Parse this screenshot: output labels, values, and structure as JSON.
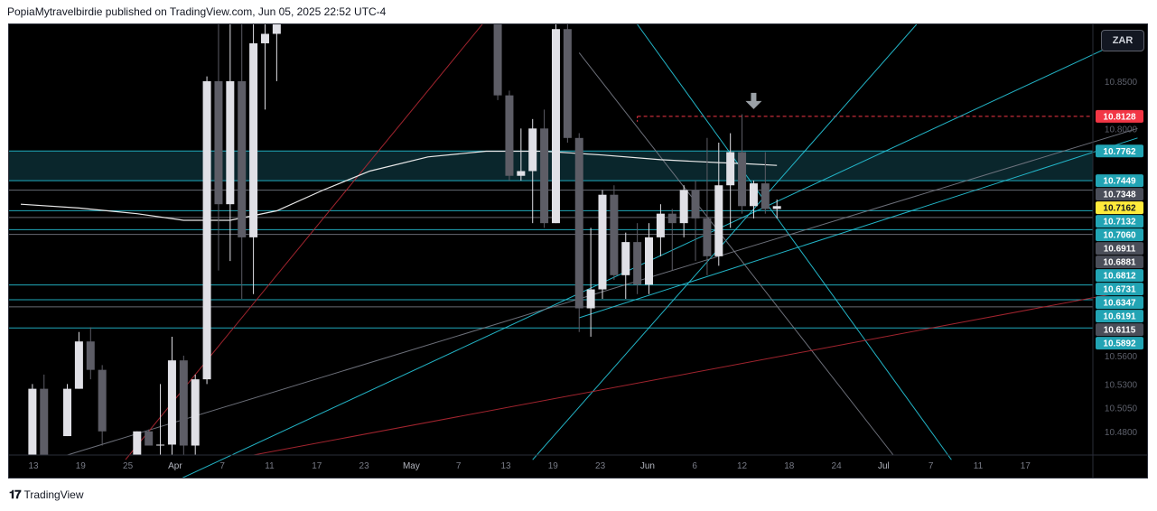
{
  "header": {
    "text": "PopiaMytravelbirdie published on TradingView.com, Jun 05, 2025 22:52 UTC-4"
  },
  "toolbar": {
    "currency_label": "ZAR"
  },
  "footer": {
    "logo_icon": "tradingview-logo-icon",
    "logo_glyph": "𝟏𝟕",
    "brand": "TradingView"
  },
  "colors": {
    "background": "#000000",
    "cyan": "#26c6da",
    "gray": "#787b86",
    "red": "#b22833",
    "candle_up": "#e0e0e6",
    "candle_down": "#5d5d66",
    "label_teal": "#22a4b4",
    "label_gray": "#4a4e59",
    "label_red": "#f23645",
    "label_yellow": "#ffeb3b"
  },
  "chart_data": {
    "type": "candlestick",
    "symbol_currency": "ZAR",
    "ylim": [
      10.455,
      10.91
    ],
    "x_tick_labels": [
      "13",
      "19",
      "25",
      "Apr",
      "7",
      "11",
      "17",
      "23",
      "May",
      "7",
      "13",
      "19",
      "23",
      "Jun",
      "6",
      "12",
      "18",
      "24",
      "Jul",
      "7",
      "11",
      "17"
    ],
    "y_tick_labels": [
      "10.8500",
      "10.8000",
      "10.5600",
      "10.5300",
      "10.5050",
      "10.4800"
    ],
    "y_tick_values": [
      10.85,
      10.8,
      10.56,
      10.53,
      10.505,
      10.48
    ],
    "price_labels": [
      {
        "text": "10.8128",
        "value": 10.8128,
        "style": "red"
      },
      {
        "text": "10.7762",
        "value": 10.7762,
        "style": "teal"
      },
      {
        "text": "10.7449",
        "value": 10.7449,
        "style": "teal"
      },
      {
        "text": "10.7348",
        "value": 10.7348,
        "style": "gray"
      },
      {
        "text": "10.7162",
        "value": 10.7162,
        "style": "yellow"
      },
      {
        "text": "10.7132",
        "value": 10.7132,
        "style": "teal"
      },
      {
        "text": "10.7060",
        "value": 10.706,
        "style": "teal"
      },
      {
        "text": "10.6911",
        "value": 10.6911,
        "style": "gray"
      },
      {
        "text": "10.6881",
        "value": 10.6881,
        "style": "gray"
      },
      {
        "text": "10.6812",
        "value": 10.6812,
        "style": "teal"
      },
      {
        "text": "10.6731",
        "value": 10.6731,
        "style": "teal"
      },
      {
        "text": "10.6347",
        "value": 10.6347,
        "style": "teal"
      },
      {
        "text": "10.6191",
        "value": 10.6191,
        "style": "teal"
      },
      {
        "text": "10.6115",
        "value": 10.6115,
        "style": "gray"
      },
      {
        "text": "10.5892",
        "value": 10.5892,
        "style": "teal"
      }
    ],
    "horizontal_levels": [
      {
        "value": 10.7762,
        "color": "cyan"
      },
      {
        "value": 10.7449,
        "color": "cyan"
      },
      {
        "value": 10.7348,
        "color": "gray"
      },
      {
        "value": 10.7132,
        "color": "cyan"
      },
      {
        "value": 10.706,
        "color": "gray"
      },
      {
        "value": 10.6931,
        "color": "cyan"
      },
      {
        "value": 10.6881,
        "color": "gray"
      },
      {
        "value": 10.6347,
        "color": "cyan"
      },
      {
        "value": 10.6191,
        "color": "cyan"
      },
      {
        "value": 10.6115,
        "color": "gray"
      },
      {
        "value": 10.5892,
        "color": "cyan"
      }
    ],
    "highlight_zone": {
      "from": 10.7449,
      "to": 10.7762
    },
    "resistance_dashed": {
      "value": 10.8128,
      "start_bar": 53
    },
    "candles": [
      {
        "i": 1,
        "o": 10.455,
        "h": 10.53,
        "l": 10.455,
        "c": 10.525
      },
      {
        "i": 2,
        "o": 10.525,
        "h": 10.54,
        "l": 10.455,
        "c": 10.455
      },
      {
        "i": 4,
        "o": 10.475,
        "h": 10.53,
        "l": 10.475,
        "c": 10.525
      },
      {
        "i": 5,
        "o": 10.525,
        "h": 10.585,
        "l": 10.525,
        "c": 10.575
      },
      {
        "i": 6,
        "o": 10.575,
        "h": 10.59,
        "l": 10.535,
        "c": 10.545
      },
      {
        "i": 7,
        "o": 10.545,
        "h": 10.55,
        "l": 10.465,
        "c": 10.48
      },
      {
        "i": 10,
        "o": 10.455,
        "h": 10.48,
        "l": 10.455,
        "c": 10.48
      },
      {
        "i": 11,
        "o": 10.48,
        "h": 10.482,
        "l": 10.465,
        "c": 10.465
      },
      {
        "i": 12,
        "o": 10.465,
        "h": 10.53,
        "l": 10.455,
        "c": 10.466
      },
      {
        "i": 13,
        "o": 10.466,
        "h": 10.58,
        "l": 10.455,
        "c": 10.555
      },
      {
        "i": 14,
        "o": 10.555,
        "h": 10.56,
        "l": 10.455,
        "c": 10.465
      },
      {
        "i": 15,
        "o": 10.465,
        "h": 10.54,
        "l": 10.455,
        "c": 10.535
      },
      {
        "i": 16,
        "o": 10.535,
        "h": 10.855,
        "l": 10.53,
        "c": 10.85
      },
      {
        "i": 17,
        "o": 10.85,
        "h": 10.91,
        "l": 10.65,
        "c": 10.72
      },
      {
        "i": 18,
        "o": 10.72,
        "h": 10.91,
        "l": 10.66,
        "c": 10.85
      },
      {
        "i": 19,
        "o": 10.85,
        "h": 10.91,
        "l": 10.62,
        "c": 10.685
      },
      {
        "i": 20,
        "o": 10.685,
        "h": 10.91,
        "l": 10.625,
        "c": 10.89
      },
      {
        "i": 21,
        "o": 10.89,
        "h": 10.91,
        "l": 10.82,
        "c": 10.9
      },
      {
        "i": 22,
        "o": 10.9,
        "h": 10.91,
        "l": 10.85,
        "c": 10.91
      },
      {
        "i": 41,
        "o": 10.91,
        "h": 10.91,
        "l": 10.83,
        "c": 10.835
      },
      {
        "i": 42,
        "o": 10.835,
        "h": 10.84,
        "l": 10.745,
        "c": 10.75
      },
      {
        "i": 43,
        "o": 10.75,
        "h": 10.8,
        "l": 10.745,
        "c": 10.755
      },
      {
        "i": 44,
        "o": 10.755,
        "h": 10.81,
        "l": 10.7,
        "c": 10.8
      },
      {
        "i": 45,
        "o": 10.8,
        "h": 10.82,
        "l": 10.695,
        "c": 10.7
      },
      {
        "i": 46,
        "o": 10.7,
        "h": 10.91,
        "l": 10.7,
        "c": 10.905
      },
      {
        "i": 47,
        "o": 10.905,
        "h": 10.91,
        "l": 10.785,
        "c": 10.79
      },
      {
        "i": 48,
        "o": 10.79,
        "h": 10.795,
        "l": 10.585,
        "c": 10.61
      },
      {
        "i": 49,
        "o": 10.61,
        "h": 10.695,
        "l": 10.58,
        "c": 10.63
      },
      {
        "i": 50,
        "o": 10.63,
        "h": 10.735,
        "l": 10.62,
        "c": 10.73
      },
      {
        "i": 51,
        "o": 10.73,
        "h": 10.74,
        "l": 10.64,
        "c": 10.645
      },
      {
        "i": 52,
        "o": 10.645,
        "h": 10.69,
        "l": 10.62,
        "c": 10.68
      },
      {
        "i": 53,
        "o": 10.68,
        "h": 10.7,
        "l": 10.625,
        "c": 10.635
      },
      {
        "i": 54,
        "o": 10.635,
        "h": 10.7,
        "l": 10.625,
        "c": 10.685
      },
      {
        "i": 55,
        "o": 10.685,
        "h": 10.72,
        "l": 10.665,
        "c": 10.71
      },
      {
        "i": 56,
        "o": 10.71,
        "h": 10.715,
        "l": 10.65,
        "c": 10.7
      },
      {
        "i": 57,
        "o": 10.7,
        "h": 10.74,
        "l": 10.685,
        "c": 10.735
      },
      {
        "i": 58,
        "o": 10.735,
        "h": 10.745,
        "l": 10.66,
        "c": 10.705
      },
      {
        "i": 59,
        "o": 10.705,
        "h": 10.79,
        "l": 10.645,
        "c": 10.665
      },
      {
        "i": 60,
        "o": 10.665,
        "h": 10.785,
        "l": 10.655,
        "c": 10.74
      },
      {
        "i": 61,
        "o": 10.74,
        "h": 10.795,
        "l": 10.695,
        "c": 10.775
      },
      {
        "i": 62,
        "o": 10.775,
        "h": 10.815,
        "l": 10.71,
        "c": 10.718
      },
      {
        "i": 63,
        "o": 10.718,
        "h": 10.745,
        "l": 10.705,
        "c": 10.742
      },
      {
        "i": 64,
        "o": 10.742,
        "h": 10.775,
        "l": 10.71,
        "c": 10.715
      },
      {
        "i": 65,
        "o": 10.715,
        "h": 10.725,
        "l": 10.705,
        "c": 10.718
      }
    ],
    "moving_average": [
      [
        0,
        10.72
      ],
      [
        5,
        10.716
      ],
      [
        10,
        10.71
      ],
      [
        14,
        10.703
      ],
      [
        18,
        10.703
      ],
      [
        22,
        10.713
      ],
      [
        26,
        10.735
      ],
      [
        30,
        10.755
      ],
      [
        35,
        10.77
      ],
      [
        40,
        10.776
      ],
      [
        45,
        10.776
      ],
      [
        50,
        10.772
      ],
      [
        55,
        10.767
      ],
      [
        60,
        10.764
      ],
      [
        62,
        10.763
      ],
      [
        65,
        10.761
      ]
    ],
    "trendlines": [
      {
        "color": "cyan",
        "p1": [
          48,
          10.6
        ],
        "p2": [
          96,
          10.79
        ]
      },
      {
        "color": "cyan",
        "p1": [
          12,
          10.42
        ],
        "p2": [
          96,
          10.9
        ]
      },
      {
        "color": "cyan",
        "p1": [
          44,
          10.45
        ],
        "p2": [
          77,
          10.91
        ]
      },
      {
        "color": "cyan",
        "p1": [
          53,
          10.91
        ],
        "p2": [
          80,
          10.45
        ]
      },
      {
        "color": "gray",
        "p1": [
          4,
          10.455
        ],
        "p2": [
          96,
          10.8
        ]
      },
      {
        "color": "gray",
        "p1": [
          48,
          10.88
        ],
        "p2": [
          75,
          10.455
        ]
      },
      {
        "color": "red",
        "p1": [
          9,
          10.45
        ],
        "p2": [
          41,
          10.93
        ]
      },
      {
        "color": "red",
        "p1": [
          20,
          10.455
        ],
        "p2": [
          96,
          10.63
        ]
      }
    ],
    "signal_arrow": {
      "bar": 63,
      "direction": "down"
    },
    "grid": false,
    "legend": "none"
  }
}
